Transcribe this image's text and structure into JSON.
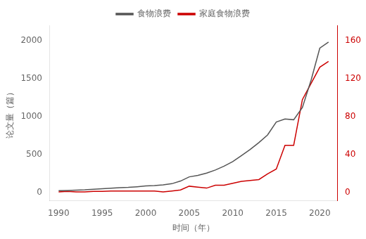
{
  "chart_data": {
    "type": "line",
    "x": [
      1990,
      1991,
      1992,
      1993,
      1994,
      1995,
      1996,
      1997,
      1998,
      1999,
      2000,
      2001,
      2002,
      2003,
      2004,
      2005,
      2006,
      2007,
      2008,
      2009,
      2010,
      2011,
      2012,
      2013,
      2014,
      2015,
      2016,
      2017,
      2018,
      2019,
      2020,
      2021
    ],
    "series": [
      {
        "name": "食物浪费",
        "color": "#555555",
        "values": [
          28,
          32,
          36,
          40,
          48,
          55,
          62,
          68,
          72,
          80,
          90,
          95,
          105,
          120,
          155,
          210,
          230,
          260,
          300,
          350,
          410,
          490,
          570,
          660,
          760,
          930,
          970,
          960,
          1120,
          1480,
          1900,
          1980
        ]
      },
      {
        "name": "家庭食物浪费",
        "color": "#cc0000",
        "axis": "y2",
        "values": [
          1,
          1.5,
          1,
          1,
          1.5,
          1.5,
          2,
          2,
          2,
          2,
          2,
          2,
          1,
          2,
          3,
          7,
          6,
          5,
          8,
          8,
          10,
          12,
          13,
          14,
          20,
          25,
          50,
          50,
          98,
          115,
          132,
          138
        ]
      }
    ],
    "xlabel": "时间（年）",
    "ylabel": "论文量（篇）",
    "xlim": [
      1989,
      2022
    ],
    "xticks": [
      1990,
      1995,
      2000,
      2005,
      2010,
      2015,
      2020
    ],
    "ylim": [
      -100,
      2200
    ],
    "yticks": [
      0,
      500,
      1000,
      1500,
      2000
    ],
    "y2lim": [
      -8,
      176
    ],
    "y2ticks": [
      0,
      40,
      80,
      120,
      160
    ],
    "grid": false,
    "legend": "top"
  }
}
